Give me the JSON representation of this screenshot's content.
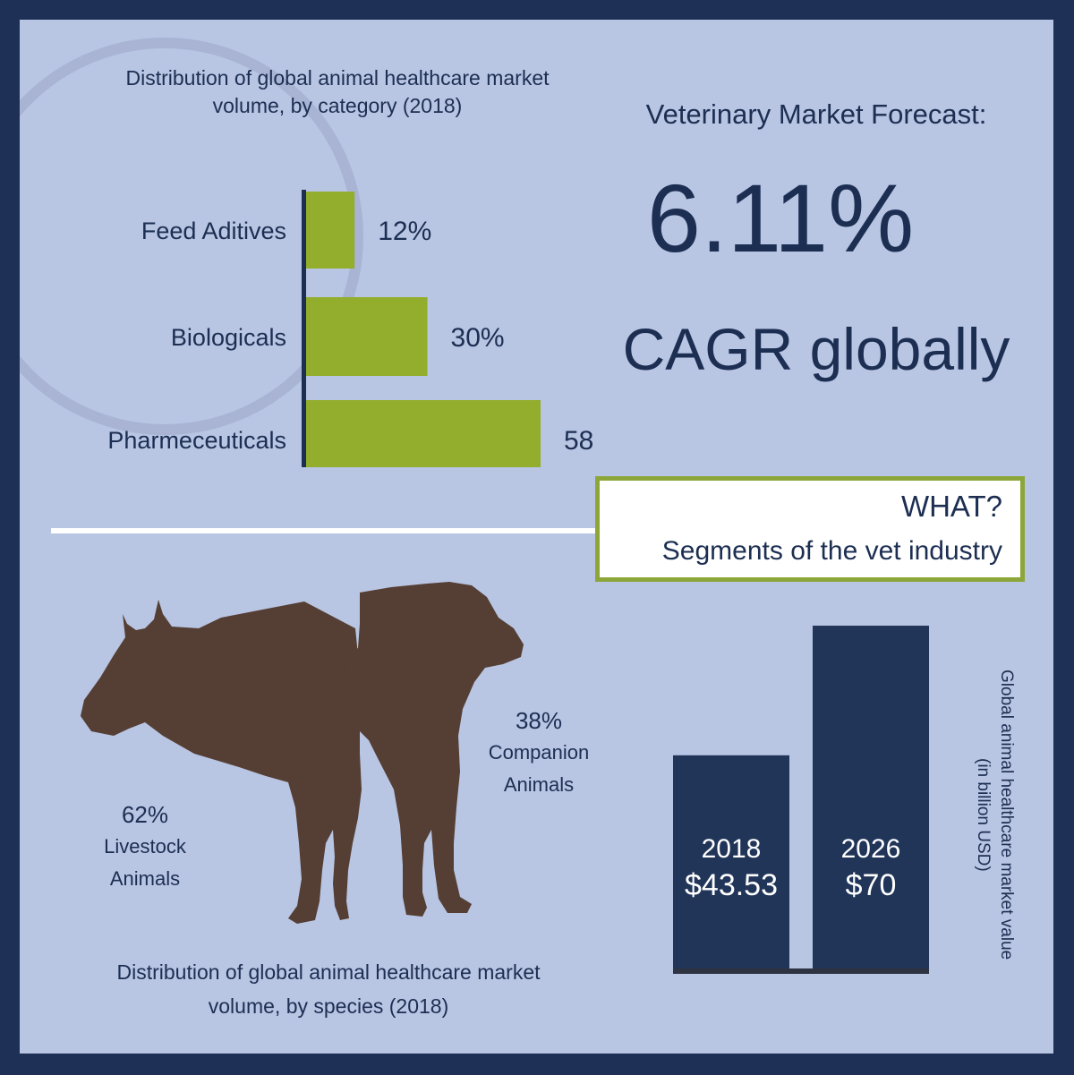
{
  "headline": {
    "title": "Veterinary Market Forecast:",
    "value": "6.11%",
    "subtitle": "CAGR globally"
  },
  "callout": {
    "question": "WHAT?",
    "text": "Segments of the vet industry"
  },
  "colors": {
    "frame": "#1f3057",
    "panel": "#b8c5e3",
    "category_bars": "#93ad2c",
    "value_bars": "#213559",
    "animals": "#553e33",
    "callout_border": "#8da63a",
    "text": "#1c2e52"
  },
  "chart_data": [
    {
      "type": "bar",
      "orientation": "horizontal",
      "title": "Distribution of global animal healthcare market volume, by category (2018)",
      "categories": [
        "Feed Aditives",
        "Biologicals",
        "Pharmeceuticals"
      ],
      "values": [
        12,
        30,
        58
      ],
      "value_labels": [
        "12%",
        "30%",
        "58%"
      ],
      "unit": "%"
    },
    {
      "type": "pie",
      "title": "Distribution of global animal healthcare market volume, by species (2018)",
      "slices": [
        {
          "pct_label": "62%",
          "label_line1": "Livestock",
          "label_line2": "Animals",
          "value": 62,
          "icon": "cow-silhouette-icon"
        },
        {
          "pct_label": "38%",
          "label_line1": "Companion",
          "label_line2": "Animals",
          "value": 38,
          "icon": "dog-silhouette-icon"
        }
      ]
    },
    {
      "type": "bar",
      "orientation": "vertical",
      "ylabel": "Global animal healthcare market value",
      "ylabel_unit": "(in billion USD)",
      "categories": [
        "2018",
        "2026"
      ],
      "values": [
        43.53,
        70
      ],
      "value_labels": [
        "$43.53",
        "$70"
      ],
      "ylim": [
        0,
        70
      ]
    }
  ]
}
